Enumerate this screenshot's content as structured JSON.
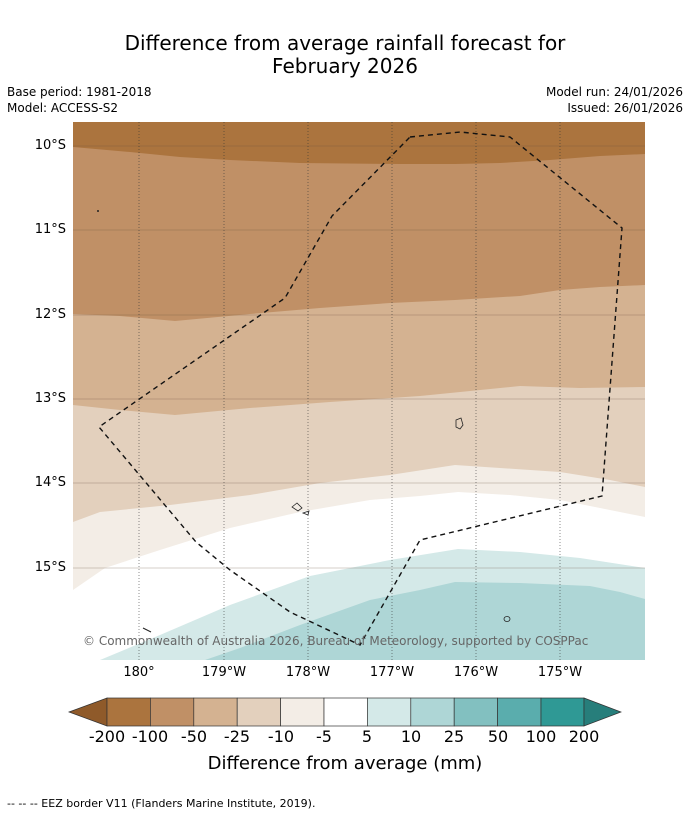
{
  "title": {
    "line1": "Difference from average rainfall forecast for",
    "line2": "February 2026"
  },
  "meta": {
    "base_period": "Base period: 1981-2018",
    "model": "Model: ACCESS-S2",
    "model_run": "Model run: 24/01/2026",
    "issued": "Issued: 26/01/2026"
  },
  "map": {
    "lat_labels": [
      "10°S",
      "11°S",
      "12°S",
      "13°S",
      "14°S",
      "15°S"
    ],
    "lon_labels": [
      "180°",
      "179°W",
      "178°W",
      "177°W",
      "176°W",
      "175°W"
    ],
    "copyright": "© Commonwealth of Australia 2026, Bureau of Meteorology, supported by COSPPac"
  },
  "colorbar": {
    "ticks": [
      "-200",
      "-100",
      "-50",
      "-25",
      "-10",
      "-5",
      "5",
      "10",
      "25",
      "50",
      "100",
      "200"
    ],
    "colors": [
      "#8f5a2a",
      "#ab743e",
      "#c09066",
      "#d4b291",
      "#e3d0bd",
      "#f3ede6",
      "#ffffff",
      "#d4e9e8",
      "#aed6d6",
      "#82c0c0",
      "#5aadad",
      "#2f9995",
      "#277e7b"
    ],
    "label": "Difference from average (mm)"
  },
  "footer": {
    "legend": "--  --  -- EEZ border V11 (Flanders Marine Institute, 2019)."
  }
}
